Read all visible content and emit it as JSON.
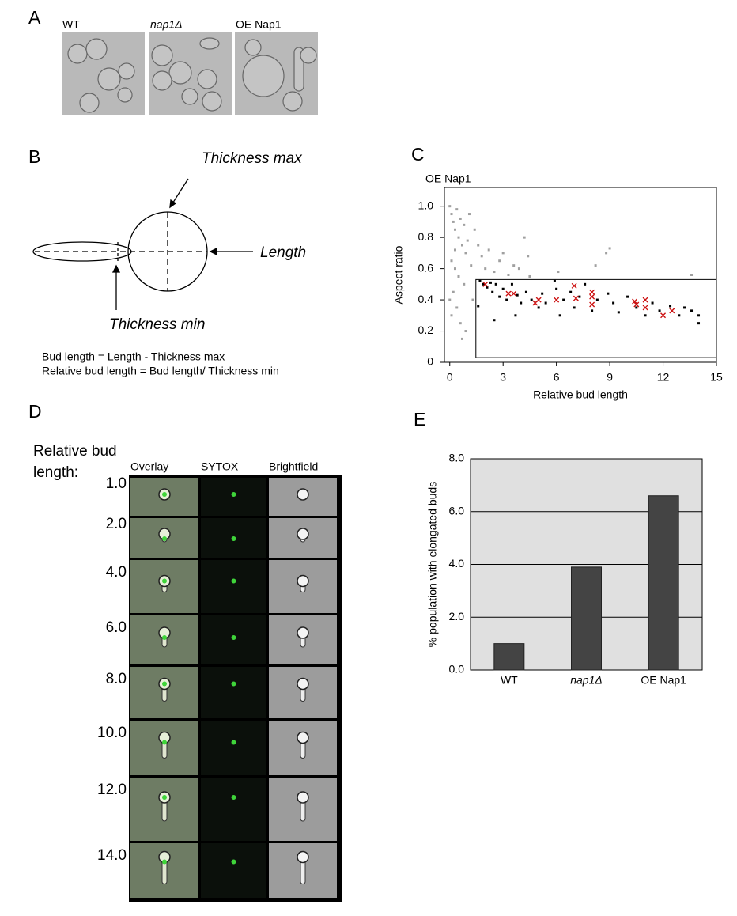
{
  "panel_a": {
    "label": "A",
    "images": [
      {
        "label": "WT"
      },
      {
        "label": "nap1Δ"
      },
      {
        "label": "OE Nap1"
      }
    ]
  },
  "panel_b": {
    "label": "B",
    "diagram": {
      "thickness_max": "Thickness max",
      "length": "Length",
      "thickness_min": "Thickness min"
    },
    "formulas": [
      "Bud length = Length - Thickness max",
      "Relative bud length = Bud length/ Thickness min"
    ]
  },
  "panel_c": {
    "label": "C"
  },
  "panel_d": {
    "label": "D",
    "row_title": [
      "Relative bud",
      "length:"
    ],
    "columns": [
      "Overlay",
      "SYTOX",
      "Brightfield"
    ],
    "rows": [
      "1.0",
      "2.0",
      "4.0",
      "6.0",
      "8.0",
      "10.0",
      "12.0",
      "14.0"
    ]
  },
  "panel_e": {
    "label": "E"
  },
  "chart_data": [
    {
      "type": "scatter",
      "title": "OE Nap1",
      "xlabel": "Relative bud length",
      "ylabel": "Aspect ratio",
      "xlim": [
        -0.3,
        15
      ],
      "ylim": [
        0,
        1.12
      ],
      "xticks": [
        0,
        3,
        6,
        9,
        12,
        15
      ],
      "yticks": [
        0,
        0.2,
        0.4,
        0.6,
        0.8,
        {
          "value": 1,
          "label": "1.0"
        }
      ],
      "gate_x": [
        1.47,
        15
      ],
      "gate_y": [
        0.03,
        0.53
      ],
      "series": [
        {
          "color": "#a0a0a0",
          "marker": "square",
          "x": [
            0,
            0.1,
            0.2,
            0.3,
            0.4,
            0.5,
            0.6,
            0.7,
            0.8,
            0.9,
            1.0,
            0.1,
            0.3,
            0.5,
            0.2,
            0.4,
            0.1,
            0.6,
            0.0,
            0.8,
            1.1,
            1.2,
            1.4,
            1.6,
            1.8,
            2.0,
            2.2,
            2.5,
            2.8,
            3.0,
            3.3,
            3.6,
            3.9,
            4.2,
            4.4,
            4.5,
            0.9,
            1.3,
            0.7,
            6.1,
            8.2,
            8.8,
            9.0,
            13.6,
            0.3
          ],
          "values": [
            1.0,
            0.95,
            0.9,
            0.85,
            0.98,
            0.8,
            0.92,
            0.75,
            0.88,
            0.7,
            0.78,
            0.65,
            0.6,
            0.55,
            0.45,
            0.35,
            0.3,
            0.25,
            0.4,
            0.5,
            0.95,
            0.62,
            0.85,
            0.75,
            0.68,
            0.6,
            0.72,
            0.58,
            0.65,
            0.7,
            0.56,
            0.62,
            0.6,
            0.8,
            0.68,
            0.55,
            0.2,
            0.4,
            0.15,
            0.58,
            0.62,
            0.7,
            0.73,
            0.56,
            0.72
          ]
        },
        {
          "color": "#000000",
          "marker": "square",
          "x": [
            1.7,
            1.9,
            2.1,
            2.3,
            2.4,
            2.6,
            2.8,
            3.0,
            3.2,
            3.5,
            3.8,
            4.0,
            4.3,
            4.6,
            5.0,
            5.2,
            5.4,
            5.9,
            6.0,
            6.2,
            6.4,
            6.8,
            7.0,
            7.3,
            7.6,
            8.0,
            8.3,
            8.9,
            9.2,
            9.5,
            10.0,
            10.5,
            11.0,
            11.4,
            11.8,
            12.4,
            12.9,
            13.2,
            13.6,
            14.0,
            14.0,
            2.5,
            3.7,
            1.6
          ],
          "values": [
            0.52,
            0.5,
            0.48,
            0.51,
            0.45,
            0.5,
            0.42,
            0.47,
            0.4,
            0.5,
            0.43,
            0.38,
            0.45,
            0.4,
            0.35,
            0.44,
            0.38,
            0.52,
            0.47,
            0.3,
            0.4,
            0.45,
            0.35,
            0.42,
            0.5,
            0.33,
            0.4,
            0.44,
            0.38,
            0.32,
            0.42,
            0.35,
            0.3,
            0.38,
            0.33,
            0.36,
            0.3,
            0.35,
            0.33,
            0.3,
            0.25,
            0.27,
            0.3,
            0.36
          ]
        },
        {
          "color": "#cc1111",
          "marker": "cross",
          "x": [
            2.0,
            3.3,
            3.6,
            4.8,
            5.0,
            6.0,
            7.0,
            7.1,
            8.0,
            8.0,
            8.0,
            10.4,
            10.5,
            11.0,
            11.0,
            12.0,
            12.5
          ],
          "values": [
            0.5,
            0.44,
            0.44,
            0.38,
            0.4,
            0.4,
            0.49,
            0.41,
            0.45,
            0.42,
            0.37,
            0.39,
            0.37,
            0.4,
            0.35,
            0.3,
            0.33
          ]
        }
      ]
    },
    {
      "type": "bar",
      "ylabel": "% population with elongated buds",
      "categories": [
        "WT",
        "nap1Δ",
        "OE Nap1"
      ],
      "values": [
        1.0,
        3.9,
        6.6
      ],
      "color": "#444444",
      "background": "#e0e0e0",
      "grid": true,
      "ylim": [
        0,
        8
      ],
      "yticks": [
        {
          "value": 0,
          "label": "0.0"
        },
        {
          "value": 2,
          "label": "2.0"
        },
        {
          "value": 4,
          "label": "4.0"
        },
        {
          "value": 6,
          "label": "6.0"
        },
        {
          "value": 8,
          "label": "8.0"
        }
      ]
    }
  ]
}
